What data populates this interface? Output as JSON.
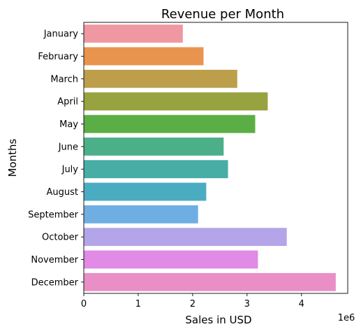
{
  "chart_data": {
    "type": "bar",
    "orientation": "horizontal",
    "title": "Revenue per Month",
    "xlabel": "Sales in USD",
    "ylabel": "Months",
    "x_offset_label": "1e6",
    "xlim": [
      0,
      4.85
    ],
    "x_ticks": [
      0,
      1,
      2,
      3,
      4
    ],
    "categories": [
      "January",
      "February",
      "March",
      "April",
      "May",
      "June",
      "July",
      "August",
      "September",
      "October",
      "November",
      "December"
    ],
    "values": [
      1.82,
      2.2,
      2.82,
      3.38,
      3.15,
      2.57,
      2.65,
      2.25,
      2.1,
      3.73,
      3.2,
      4.63
    ],
    "colors": [
      "#ef98a1",
      "#e8944f",
      "#bd9e4a",
      "#97a240",
      "#5bae45",
      "#4bb08a",
      "#47ada5",
      "#4aacc0",
      "#6faee3",
      "#b4a5e8",
      "#e18ae6",
      "#e98fc5"
    ],
    "grid": false,
    "legend": "none"
  }
}
